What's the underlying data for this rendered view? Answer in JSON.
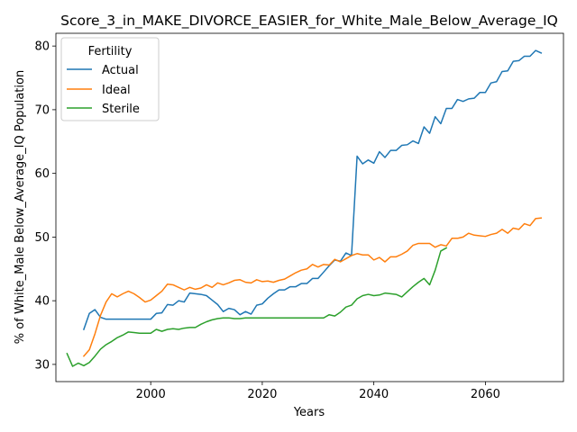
{
  "chart_data": {
    "type": "line",
    "title": "Score_3_in_MAKE_DIVORCE_EASIER_for_White_Male_Below_Average_IQ",
    "xlabel": "Years",
    "ylabel": "% of White_Male Below_Average_IQ Population",
    "xlim": [
      1983,
      2074
    ],
    "ylim": [
      27.3,
      82.0
    ],
    "xticks": [
      2000,
      2020,
      2040,
      2060
    ],
    "yticks": [
      30,
      40,
      50,
      60,
      70,
      80
    ],
    "legend": {
      "title": "Fertility",
      "position": "top-left"
    },
    "grid": false,
    "series": [
      {
        "name": "Actual",
        "color": "#1f77b4",
        "x": [
          1988,
          1989,
          1990,
          1991,
          1992,
          1993,
          1994,
          1995,
          1996,
          1997,
          1998,
          1999,
          2000,
          2001,
          2002,
          2003,
          2004,
          2005,
          2006,
          2007,
          2008,
          2009,
          2010,
          2011,
          2012,
          2013,
          2014,
          2015,
          2016,
          2017,
          2018,
          2019,
          2020,
          2021,
          2022,
          2023,
          2024,
          2025,
          2026,
          2027,
          2028,
          2029,
          2030,
          2031,
          2032,
          2033,
          2034,
          2035,
          2036,
          2037,
          2038,
          2039,
          2040,
          2041,
          2042,
          2043,
          2044,
          2045,
          2046,
          2047,
          2048,
          2049,
          2050,
          2051,
          2052,
          2053,
          2054,
          2055,
          2056,
          2057,
          2058,
          2059,
          2060,
          2061,
          2062,
          2063,
          2064,
          2065,
          2066,
          2067,
          2068,
          2069,
          2070
        ],
        "values": [
          35.5,
          38.0,
          38.6,
          37.4,
          37.1,
          37.1,
          37.1,
          37.1,
          37.1,
          37.1,
          37.1,
          37.1,
          37.1,
          38.0,
          38.1,
          39.4,
          39.3,
          40.0,
          39.8,
          41.2,
          41.1,
          41.0,
          40.8,
          40.1,
          39.4,
          38.3,
          38.8,
          38.6,
          37.8,
          38.3,
          37.9,
          39.3,
          39.5,
          40.4,
          41.1,
          41.7,
          41.7,
          42.2,
          42.2,
          42.7,
          42.7,
          43.5,
          43.5,
          44.5,
          45.5,
          46.4,
          46.2,
          47.5,
          47.1,
          62.7,
          61.5,
          62.1,
          61.6,
          63.4,
          62.5,
          63.6,
          63.6,
          64.4,
          64.5,
          65.1,
          64.7,
          67.3,
          66.3,
          68.9,
          67.8,
          70.2,
          70.2,
          71.6,
          71.3,
          71.7,
          71.8,
          72.7,
          72.7,
          74.2,
          74.4,
          76.0,
          76.1,
          77.6,
          77.7,
          78.4,
          78.4,
          79.3,
          78.9
        ]
      },
      {
        "name": "Ideal",
        "color": "#ff7f0e",
        "x": [
          1988,
          1989,
          1990,
          1991,
          1992,
          1993,
          1994,
          1995,
          1996,
          1997,
          1998,
          1999,
          2000,
          2001,
          2002,
          2003,
          2004,
          2005,
          2006,
          2007,
          2008,
          2009,
          2010,
          2011,
          2012,
          2013,
          2014,
          2015,
          2016,
          2017,
          2018,
          2019,
          2020,
          2021,
          2022,
          2023,
          2024,
          2025,
          2026,
          2027,
          2028,
          2029,
          2030,
          2031,
          2032,
          2033,
          2034,
          2035,
          2036,
          2037,
          2038,
          2039,
          2040,
          2041,
          2042,
          2043,
          2044,
          2045,
          2046,
          2047,
          2048,
          2049,
          2050,
          2051,
          2052,
          2053,
          2054,
          2055,
          2056,
          2057,
          2058,
          2059,
          2060,
          2061,
          2062,
          2063,
          2064,
          2065,
          2066,
          2067,
          2068,
          2069,
          2070
        ],
        "values": [
          31.3,
          32.3,
          34.8,
          37.7,
          39.8,
          41.1,
          40.6,
          41.1,
          41.5,
          41.1,
          40.5,
          39.8,
          40.1,
          40.8,
          41.5,
          42.6,
          42.5,
          42.1,
          41.7,
          42.1,
          41.8,
          42.0,
          42.5,
          42.1,
          42.8,
          42.5,
          42.8,
          43.2,
          43.3,
          42.9,
          42.8,
          43.3,
          43.0,
          43.1,
          42.9,
          43.2,
          43.4,
          43.9,
          44.4,
          44.8,
          45.0,
          45.7,
          45.3,
          45.7,
          45.6,
          46.5,
          46.1,
          46.6,
          47.1,
          47.4,
          47.2,
          47.2,
          46.4,
          46.8,
          46.1,
          46.9,
          46.9,
          47.3,
          47.8,
          48.7,
          49.0,
          49.0,
          49.0,
          48.4,
          48.8,
          48.6,
          49.8,
          49.8,
          50.0,
          50.6,
          50.3,
          50.2,
          50.1,
          50.4,
          50.6,
          51.2,
          50.6,
          51.4,
          51.2,
          52.1,
          51.8,
          52.9,
          53.0
        ]
      },
      {
        "name": "Sterile",
        "color": "#2ca02c",
        "x": [
          1985,
          1986,
          1987,
          1988,
          1989,
          1990,
          1991,
          1992,
          1993,
          1994,
          1995,
          1996,
          1997,
          1998,
          1999,
          2000,
          2001,
          2002,
          2003,
          2004,
          2005,
          2006,
          2007,
          2008,
          2009,
          2010,
          2011,
          2012,
          2013,
          2014,
          2015,
          2016,
          2017,
          2018,
          2019,
          2020,
          2021,
          2022,
          2023,
          2024,
          2025,
          2026,
          2027,
          2028,
          2029,
          2030,
          2031,
          2032,
          2033,
          2034,
          2035,
          2036,
          2037,
          2038,
          2039,
          2040,
          2041,
          2042,
          2043,
          2044,
          2045,
          2046,
          2047,
          2048,
          2049,
          2050,
          2051,
          2052,
          2053
        ],
        "values": [
          31.7,
          29.7,
          30.2,
          29.8,
          30.3,
          31.3,
          32.4,
          33.1,
          33.6,
          34.2,
          34.6,
          35.1,
          35.0,
          34.9,
          34.9,
          34.9,
          35.5,
          35.2,
          35.5,
          35.6,
          35.5,
          35.7,
          35.8,
          35.8,
          36.3,
          36.7,
          37.0,
          37.2,
          37.3,
          37.3,
          37.2,
          37.2,
          37.3,
          37.3,
          37.3,
          37.3,
          37.3,
          37.3,
          37.3,
          37.3,
          37.3,
          37.3,
          37.3,
          37.3,
          37.3,
          37.3,
          37.3,
          37.8,
          37.6,
          38.2,
          39.0,
          39.3,
          40.3,
          40.8,
          41.0,
          40.8,
          40.9,
          41.2,
          41.1,
          41.0,
          40.6,
          41.4,
          42.2,
          42.9,
          43.5,
          42.5,
          44.8,
          47.8,
          48.3
        ]
      }
    ]
  }
}
